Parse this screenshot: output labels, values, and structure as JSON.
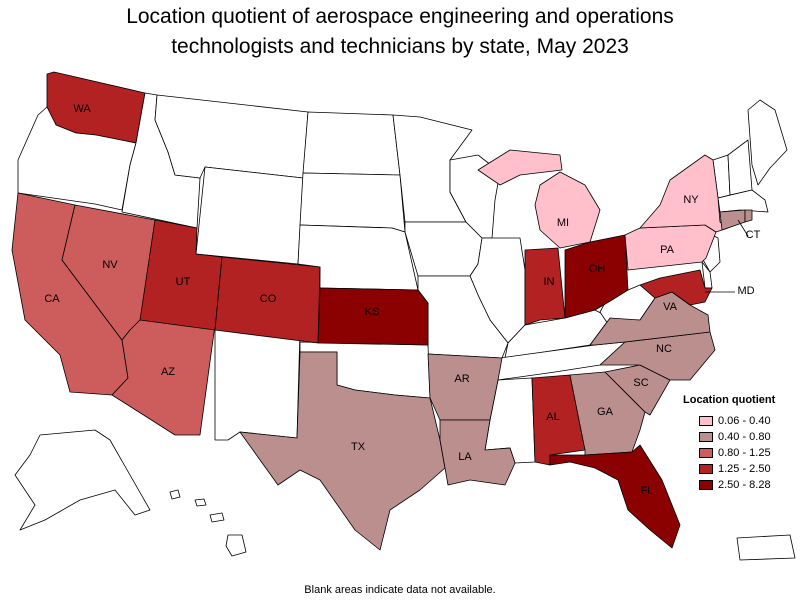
{
  "title_line1": "Location quotient of aerospace engineering and operations",
  "title_line2": "technologists and technicians by state, May 2023",
  "legend": {
    "title": "Location quotient",
    "items": [
      {
        "label": "0.06 - 0.40",
        "color": "#ffc0cb"
      },
      {
        "label": "0.40 - 0.80",
        "color": "#bc8f8f"
      },
      {
        "label": "0.80 - 1.25",
        "color": "#cd5c5c"
      },
      {
        "label": "1.25 - 2.50",
        "color": "#b22222"
      },
      {
        "label": "2.50 - 8.28",
        "color": "#8b0000"
      }
    ]
  },
  "footnote": "Blank areas indicate data not available.",
  "states": [
    {
      "abbr": "WA",
      "label": "WA",
      "class": 3
    },
    {
      "abbr": "OR",
      "label": "",
      "class": null
    },
    {
      "abbr": "ID",
      "label": "",
      "class": null
    },
    {
      "abbr": "MT",
      "label": "",
      "class": null
    },
    {
      "abbr": "WY",
      "label": "",
      "class": null
    },
    {
      "abbr": "ND",
      "label": "",
      "class": null
    },
    {
      "abbr": "SD",
      "label": "",
      "class": null
    },
    {
      "abbr": "NE",
      "label": "",
      "class": null
    },
    {
      "abbr": "MN",
      "label": "",
      "class": null
    },
    {
      "abbr": "IA",
      "label": "",
      "class": null
    },
    {
      "abbr": "WI",
      "label": "",
      "class": null
    },
    {
      "abbr": "IL",
      "label": "",
      "class": null
    },
    {
      "abbr": "MO",
      "label": "",
      "class": null
    },
    {
      "abbr": "OK",
      "label": "",
      "class": null
    },
    {
      "abbr": "NM",
      "label": "",
      "class": null
    },
    {
      "abbr": "KY",
      "label": "",
      "class": null
    },
    {
      "abbr": "TN",
      "label": "",
      "class": null
    },
    {
      "abbr": "MS",
      "label": "",
      "class": null
    },
    {
      "abbr": "WV",
      "label": "",
      "class": null
    },
    {
      "abbr": "VT",
      "label": "",
      "class": null
    },
    {
      "abbr": "NH",
      "label": "",
      "class": null
    },
    {
      "abbr": "ME",
      "label": "",
      "class": null
    },
    {
      "abbr": "MA",
      "label": "",
      "class": null
    },
    {
      "abbr": "NJ",
      "label": "",
      "class": null
    },
    {
      "abbr": "DE",
      "label": "",
      "class": null
    },
    {
      "abbr": "AK",
      "label": "",
      "class": null
    },
    {
      "abbr": "HI",
      "label": "",
      "class": null
    },
    {
      "abbr": "PR",
      "label": "",
      "class": null
    },
    {
      "abbr": "CA",
      "label": "CA",
      "class": 2
    },
    {
      "abbr": "NV",
      "label": "NV",
      "class": 2
    },
    {
      "abbr": "AZ",
      "label": "AZ",
      "class": 2
    },
    {
      "abbr": "UT",
      "label": "UT",
      "class": 3
    },
    {
      "abbr": "CO",
      "label": "CO",
      "class": 3
    },
    {
      "abbr": "KS",
      "label": "KS",
      "class": 4
    },
    {
      "abbr": "TX",
      "label": "TX",
      "class": 1
    },
    {
      "abbr": "AR",
      "label": "AR",
      "class": 1
    },
    {
      "abbr": "LA",
      "label": "LA",
      "class": 1
    },
    {
      "abbr": "AL",
      "label": "AL",
      "class": 3
    },
    {
      "abbr": "GA",
      "label": "GA",
      "class": 1
    },
    {
      "abbr": "SC",
      "label": "SC",
      "class": 1
    },
    {
      "abbr": "NC",
      "label": "NC",
      "class": 1
    },
    {
      "abbr": "VA",
      "label": "VA",
      "class": 1
    },
    {
      "abbr": "FL",
      "label": "FL",
      "class": 4
    },
    {
      "abbr": "IN",
      "label": "IN",
      "class": 3
    },
    {
      "abbr": "OH",
      "label": "OH",
      "class": 4
    },
    {
      "abbr": "MI",
      "label": "MI",
      "class": 0
    },
    {
      "abbr": "PA",
      "label": "PA",
      "class": 0
    },
    {
      "abbr": "NY",
      "label": "NY",
      "class": 0
    },
    {
      "abbr": "CT",
      "label": "CT",
      "class": 1
    },
    {
      "abbr": "MD",
      "label": "MD",
      "class": 3
    },
    {
      "abbr": "RI",
      "label": "",
      "class": 1
    }
  ]
}
